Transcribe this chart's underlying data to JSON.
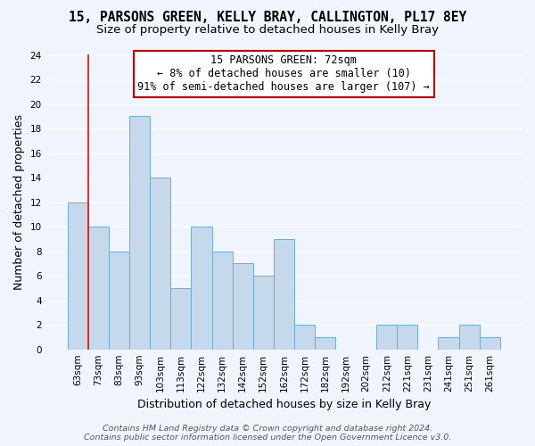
{
  "title": "15, PARSONS GREEN, KELLY BRAY, CALLINGTON, PL17 8EY",
  "subtitle": "Size of property relative to detached houses in Kelly Bray",
  "xlabel": "Distribution of detached houses by size in Kelly Bray",
  "ylabel": "Number of detached properties",
  "bin_labels": [
    "63sqm",
    "73sqm",
    "83sqm",
    "93sqm",
    "103sqm",
    "113sqm",
    "122sqm",
    "132sqm",
    "142sqm",
    "152sqm",
    "162sqm",
    "172sqm",
    "182sqm",
    "192sqm",
    "202sqm",
    "212sqm",
    "221sqm",
    "231sqm",
    "241sqm",
    "251sqm",
    "261sqm"
  ],
  "bin_counts": [
    12,
    10,
    8,
    19,
    14,
    5,
    10,
    8,
    7,
    6,
    9,
    2,
    1,
    0,
    0,
    2,
    2,
    0,
    1,
    2,
    1
  ],
  "bar_color": "#c6d9ec",
  "bar_edge_color": "#6baed6",
  "annotation_text": "15 PARSONS GREEN: 72sqm\n← 8% of detached houses are smaller (10)\n91% of semi-detached houses are larger (107) →",
  "annotation_box_color": "white",
  "annotation_box_edge_color": "#cc0000",
  "ylim": [
    0,
    24
  ],
  "yticks": [
    0,
    2,
    4,
    6,
    8,
    10,
    12,
    14,
    16,
    18,
    20,
    22,
    24
  ],
  "footer_line1": "Contains HM Land Registry data © Crown copyright and database right 2024.",
  "footer_line2": "Contains public sector information licensed under the Open Government Licence v3.0.",
  "background_color": "#f0f4fc",
  "grid_color": "white",
  "title_fontsize": 10.5,
  "subtitle_fontsize": 9.5,
  "axis_label_fontsize": 9,
  "tick_fontsize": 7.5,
  "footer_fontsize": 6.8,
  "annotation_fontsize": 8.5
}
